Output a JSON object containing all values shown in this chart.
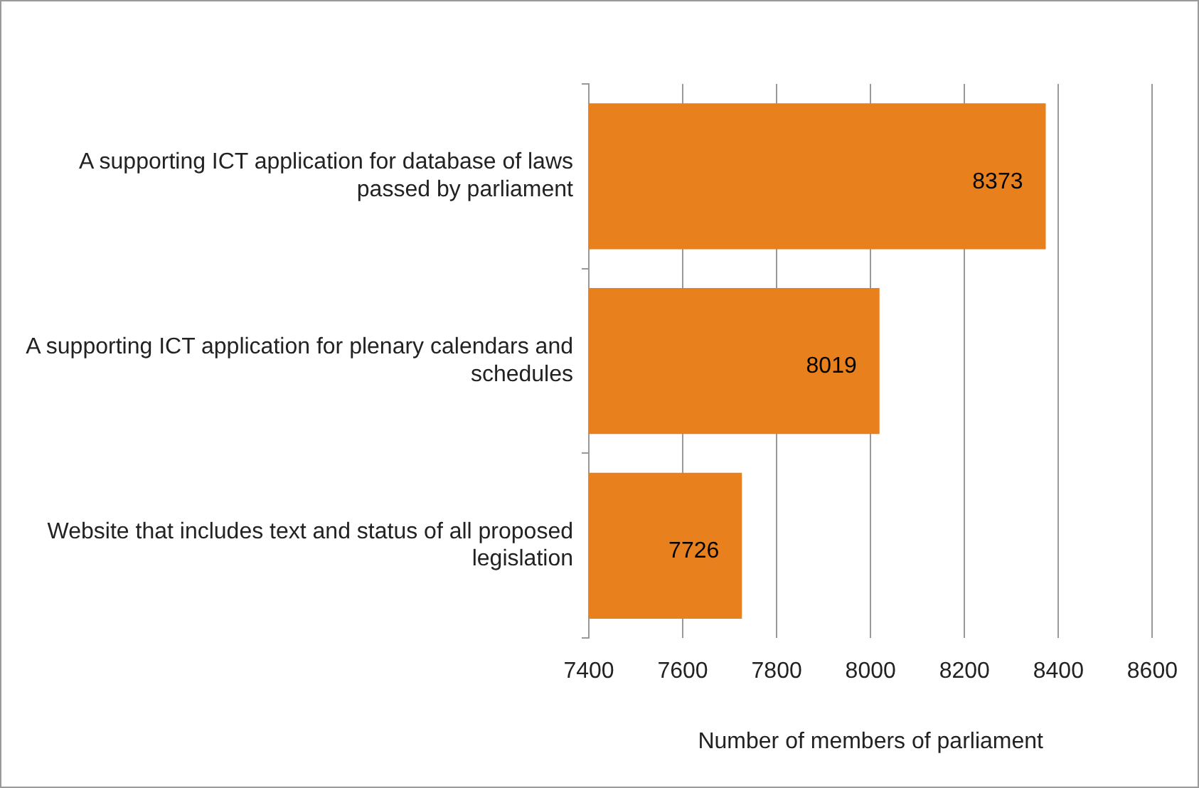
{
  "chart_data": {
    "type": "bar",
    "orientation": "horizontal",
    "xlabel": "Number of members of parliament",
    "categories": [
      "A supporting ICT application for database of laws passed by parliament",
      "A supporting ICT application for plenary calendars and schedules",
      "Website that includes text and status of all proposed legislation"
    ],
    "values": [
      8373,
      8019,
      7726
    ],
    "color": "#e8801e",
    "xlim": [
      7400,
      8600
    ],
    "xticks": [
      7400,
      7600,
      7800,
      8000,
      8200,
      8400,
      8600
    ],
    "grid": "x",
    "data_labels": true
  }
}
